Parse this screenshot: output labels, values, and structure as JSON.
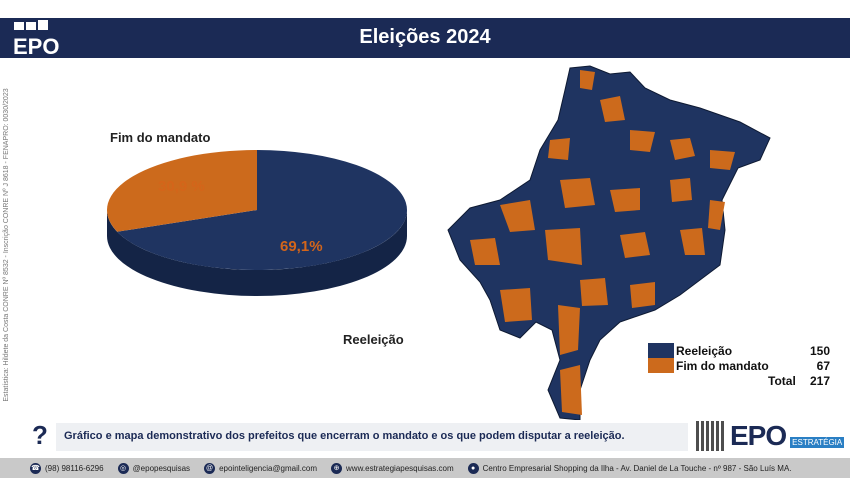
{
  "header": {
    "logo": "EPO",
    "title": "Eleições 2024"
  },
  "sidebar_text": "Estatística: Hildete da Costa CONRE Nº 8532 - Inscrição CONRE Nº J 8618 - FENAPRO: 0030/2023",
  "chart_data": {
    "type": "pie",
    "title": "Eleições 2024",
    "categories": [
      "Reeleição",
      "Fim do mandato"
    ],
    "values": [
      69.1,
      30.9
    ],
    "labels": [
      "69,1%",
      "30,9 %"
    ],
    "colors": [
      "#1f3461",
      "#cc6a1c"
    ]
  },
  "legend": {
    "items": [
      {
        "label": "Reeleição",
        "value": "150",
        "color": "#1f3461"
      },
      {
        "label": "Fim do mandato",
        "value": "67",
        "color": "#cc6a1c"
      }
    ],
    "total_label": "Total",
    "total_value": "217"
  },
  "note": {
    "icon": "?",
    "text": "Gráfico e mapa demonstrativo dos prefeitos que encerram o mandato e os que podem disputar a reeleição."
  },
  "brand": {
    "name": "EPO",
    "sub": "ESTRATÉGIA"
  },
  "footer": {
    "phone": "(98) 98116-6296",
    "instagram": "@epopesquisas",
    "email": "epointeligencia@gmail.com",
    "site": "www.estrategiapesquisas.com",
    "address": "Centro Empresarial Shopping da Ilha - Av. Daniel de La Touche - nº 987 - São Luís MA."
  }
}
